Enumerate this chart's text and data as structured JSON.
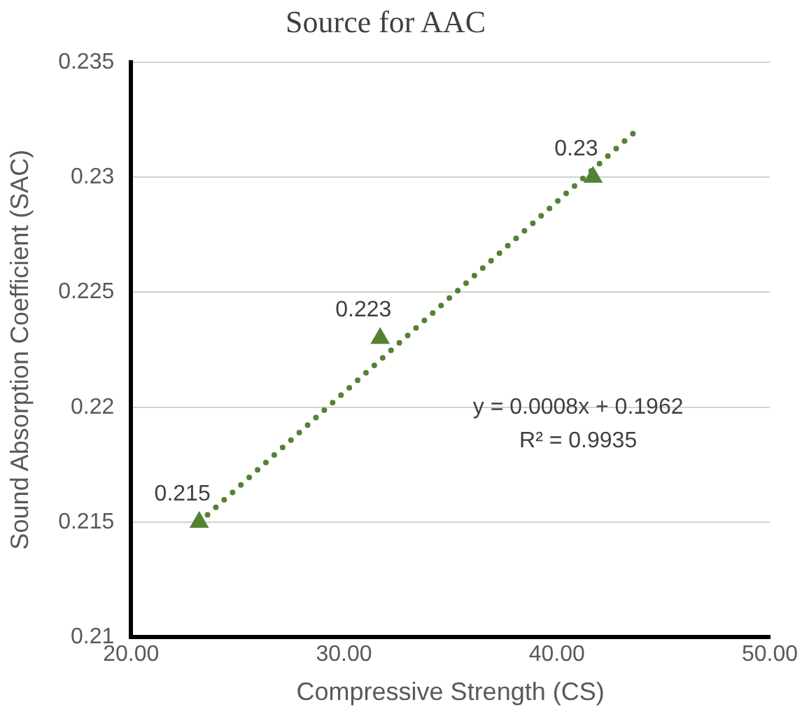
{
  "chart_data": {
    "type": "scatter",
    "title": "Source for AAC",
    "xlabel": "Compressive Strength (CS)",
    "ylabel": "Sound Absorption Coefficient (SAC)",
    "series": [
      {
        "color": "#548235",
        "x": [
          23.2,
          31.7,
          41.7
        ],
        "values": [
          0.215,
          0.223,
          0.23
        ],
        "marker": "triangle",
        "data_labels": true
      },
      {
        "type": "line",
        "color": "#548235",
        "x": [
          23.2,
          43.7
        ],
        "values": [
          0.215,
          0.232
        ],
        "marker": "none",
        "line_style": "dotted"
      }
    ],
    "annotations": [
      "y = 0.0008x + 0.1962",
      "R² = 0.9935"
    ],
    "xlim": [
      20,
      50
    ],
    "xticks": [
      {
        "value": 20,
        "label": "20.00"
      },
      {
        "value": 30,
        "label": "30.00"
      },
      {
        "value": 40,
        "label": "40.00"
      },
      {
        "value": 50,
        "label": "50.00"
      }
    ],
    "ylim": [
      0.21,
      0.235
    ],
    "yticks": [
      0.21,
      0.215,
      0.22,
      0.225,
      0.23,
      0.235
    ],
    "grid": "y",
    "legend": false
  }
}
